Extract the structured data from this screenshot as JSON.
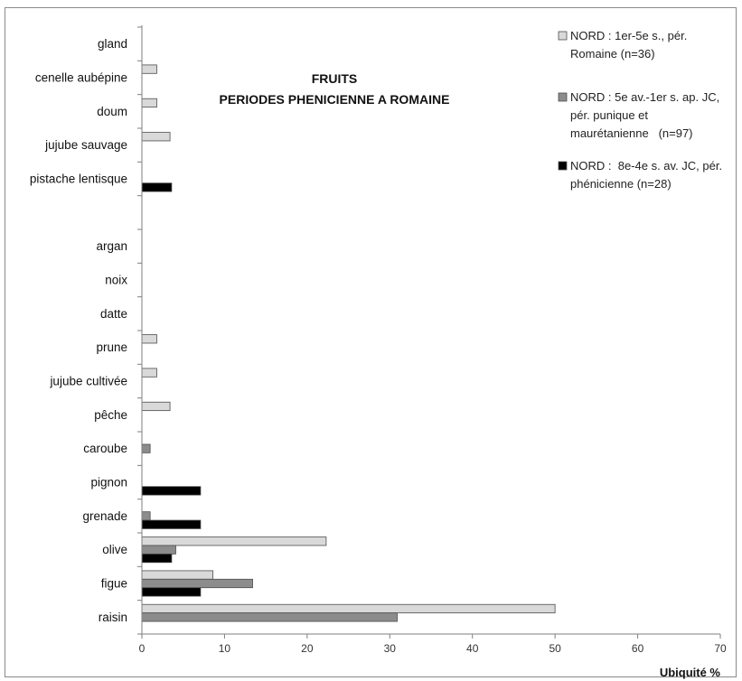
{
  "chart_data": {
    "type": "bar",
    "orientation": "horizontal",
    "title": [
      "FRUITS",
      "PERIODES PHENICIENNE A ROMAINE"
    ],
    "xlabel": "Ubiquité %",
    "ylabel": "",
    "xlim": [
      0,
      70
    ],
    "xticks": [
      0,
      10,
      20,
      30,
      40,
      50,
      60,
      70
    ],
    "grid": false,
    "legend_position": "top-right",
    "categories": [
      "gland",
      "cenelle aubépine",
      "doum",
      "jujube sauvage",
      "pistache lentisque",
      "",
      "argan",
      "noix",
      "datte",
      "prune",
      "jujube cultivée",
      "pêche",
      "caroube",
      "pignon",
      "grenade",
      "olive",
      "figue",
      "raisin"
    ],
    "series": [
      {
        "name_lines": [
          "NORD : 1er-5e s., pér.",
          "Romaine (n=36)"
        ],
        "color": "#d9d9d9",
        "values": [
          0,
          1.8,
          1.8,
          3.4,
          0,
          0,
          0,
          0,
          0,
          1.8,
          1.8,
          3.4,
          0,
          0,
          0,
          22.3,
          8.6,
          50
        ]
      },
      {
        "name_lines": [
          "NORD : 5e av.-1er s. ap. JC,",
          "pér. punique et",
          "maurétanienne   (n=97)"
        ],
        "color": "#8c8c8c",
        "values": [
          0,
          0,
          0,
          0,
          0,
          0,
          0,
          0,
          0,
          0,
          0,
          0,
          1.0,
          0,
          1.0,
          4.1,
          13.4,
          30.9
        ]
      },
      {
        "name_lines": [
          "NORD :  8e-4e s. av. JC, pér.",
          "phénicienne (n=28)"
        ],
        "color": "#000000",
        "values": [
          0,
          0,
          0,
          0,
          3.6,
          0,
          0,
          0,
          0,
          0,
          0,
          0,
          0,
          7.1,
          7.1,
          3.6,
          7.1,
          0
        ]
      }
    ]
  }
}
